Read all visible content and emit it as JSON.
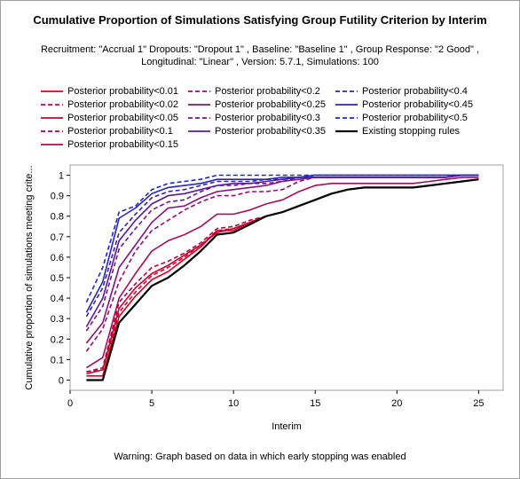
{
  "title": "Cumulative Proportion of Simulations Satisfying Group Futility Criterion by Interim",
  "subtitle_line1": "Recruitment: \"Accrual 1\" Dropouts: \"Dropout 1\" , Baseline: \"Baseline 1\" , Group Response: \"2 Good\" ,",
  "subtitle_line2": "Longitudinal: \"Linear\" , Version: 5.7.1, Simulations: 100",
  "warning": "Warning: Graph based on data in which early stopping was enabled",
  "chart_data": {
    "type": "line",
    "xlabel": "Interim",
    "ylabel": "Cumulative proportion of simulations meeting crite...",
    "xlim": [
      0,
      26.5
    ],
    "ylim": [
      -0.05,
      1.05
    ],
    "xticks": [
      0,
      5,
      10,
      15,
      20,
      25
    ],
    "yticks": [
      0,
      0.1,
      0.2,
      0.3,
      0.4,
      0.5,
      0.6,
      0.7,
      0.8,
      0.9,
      1
    ],
    "x": [
      1,
      2,
      3,
      4,
      5,
      6,
      7,
      8,
      9,
      10,
      11,
      12,
      13,
      14,
      15,
      16,
      17,
      18,
      19,
      20,
      21,
      22,
      23,
      24,
      25
    ],
    "legend_position": "top",
    "series": [
      {
        "name": "Posterior probability<0.01",
        "color": "#e0001e",
        "dash": "solid",
        "values": [
          0.02,
          0.02,
          0.31,
          0.41,
          0.49,
          0.53,
          0.59,
          0.65,
          0.73,
          0.73,
          0.77,
          0.8,
          0.82,
          0.85,
          0.88,
          0.91,
          0.93,
          0.94,
          0.94,
          0.94,
          0.94,
          0.95,
          0.96,
          0.97,
          0.98
        ]
      },
      {
        "name": "Posterior probability<0.02",
        "color": "#dc0028",
        "dash": "dashed",
        "values": [
          0.04,
          0.05,
          0.33,
          0.43,
          0.51,
          0.55,
          0.6,
          0.66,
          0.73,
          0.74,
          0.77,
          0.8,
          0.82,
          0.85,
          0.88,
          0.91,
          0.93,
          0.94,
          0.94,
          0.94,
          0.94,
          0.95,
          0.96,
          0.97,
          0.98
        ]
      },
      {
        "name": "Posterior probability<0.05",
        "color": "#cc0032",
        "dash": "solid",
        "values": [
          0.03,
          0.05,
          0.35,
          0.45,
          0.52,
          0.56,
          0.61,
          0.66,
          0.72,
          0.74,
          0.77,
          0.8,
          0.82,
          0.85,
          0.88,
          0.91,
          0.93,
          0.94,
          0.94,
          0.94,
          0.94,
          0.95,
          0.96,
          0.97,
          0.98
        ]
      },
      {
        "name": "Posterior probability<0.1",
        "color": "#b8004a",
        "dash": "dashed",
        "values": [
          0.04,
          0.06,
          0.38,
          0.47,
          0.55,
          0.58,
          0.62,
          0.67,
          0.74,
          0.75,
          0.78,
          0.8,
          0.82,
          0.85,
          0.88,
          0.91,
          0.93,
          0.94,
          0.94,
          0.94,
          0.94,
          0.95,
          0.96,
          0.97,
          0.98
        ]
      },
      {
        "name": "Posterior probability<0.15",
        "color": "#aa0a5a",
        "dash": "solid",
        "values": [
          0.06,
          0.11,
          0.4,
          0.52,
          0.63,
          0.68,
          0.71,
          0.75,
          0.81,
          0.81,
          0.83,
          0.86,
          0.88,
          0.92,
          0.95,
          0.96,
          0.96,
          0.96,
          0.96,
          0.96,
          0.96,
          0.97,
          0.98,
          0.99,
          0.99
        ]
      },
      {
        "name": "Posterior probability<0.2",
        "color": "#9a0a70",
        "dash": "dashed",
        "values": [
          0.14,
          0.25,
          0.48,
          0.63,
          0.73,
          0.78,
          0.83,
          0.87,
          0.9,
          0.9,
          0.92,
          0.92,
          0.93,
          0.97,
          0.99,
          0.99,
          0.99,
          0.99,
          0.99,
          0.99,
          0.99,
          0.99,
          0.99,
          1.0,
          1.0
        ]
      },
      {
        "name": "Posterior probability<0.25",
        "color": "#8a1080",
        "dash": "solid",
        "values": [
          0.18,
          0.28,
          0.55,
          0.66,
          0.77,
          0.84,
          0.85,
          0.89,
          0.92,
          0.93,
          0.94,
          0.95,
          0.97,
          0.98,
          0.99,
          0.99,
          0.99,
          0.99,
          0.99,
          0.99,
          0.99,
          0.99,
          0.99,
          1.0,
          1.0
        ]
      },
      {
        "name": "Posterior probability<0.3",
        "color": "#721490",
        "dash": "dashed",
        "values": [
          0.24,
          0.36,
          0.64,
          0.74,
          0.83,
          0.87,
          0.88,
          0.92,
          0.95,
          0.95,
          0.96,
          0.96,
          0.97,
          0.99,
          0.99,
          0.99,
          0.99,
          0.99,
          0.99,
          0.99,
          0.99,
          0.99,
          0.99,
          1.0,
          1.0
        ]
      },
      {
        "name": "Posterior probability<0.35",
        "color": "#5a18a0",
        "dash": "solid",
        "values": [
          0.26,
          0.4,
          0.68,
          0.78,
          0.86,
          0.9,
          0.91,
          0.93,
          0.95,
          0.96,
          0.96,
          0.97,
          0.98,
          0.99,
          0.99,
          0.99,
          0.99,
          0.99,
          0.99,
          0.99,
          0.99,
          0.99,
          0.99,
          1.0,
          1.0
        ]
      },
      {
        "name": "Posterior probability<0.4",
        "color": "#3a20b4",
        "dash": "dashed",
        "values": [
          0.31,
          0.45,
          0.72,
          0.81,
          0.89,
          0.92,
          0.93,
          0.95,
          0.97,
          0.97,
          0.97,
          0.98,
          0.98,
          0.99,
          1.0,
          1.0,
          1.0,
          1.0,
          1.0,
          1.0,
          1.0,
          1.0,
          1.0,
          1.0,
          1.0
        ]
      },
      {
        "name": "Posterior probability<0.45",
        "color": "#2a24c4",
        "dash": "solid",
        "values": [
          0.33,
          0.48,
          0.79,
          0.84,
          0.91,
          0.94,
          0.95,
          0.96,
          0.98,
          0.98,
          0.98,
          0.98,
          0.99,
          0.99,
          1.0,
          1.0,
          1.0,
          1.0,
          1.0,
          1.0,
          1.0,
          1.0,
          1.0,
          1.0,
          1.0
        ]
      },
      {
        "name": "Posterior probability<0.5",
        "color": "#1a28d2",
        "dash": "dashed",
        "values": [
          0.38,
          0.55,
          0.82,
          0.85,
          0.93,
          0.96,
          0.97,
          0.98,
          1.0,
          1.0,
          1.0,
          1.0,
          1.0,
          1.0,
          1.0,
          1.0,
          1.0,
          1.0,
          1.0,
          1.0,
          1.0,
          1.0,
          1.0,
          1.0,
          1.0
        ]
      },
      {
        "name": "Existing stopping rules",
        "color": "#000000",
        "dash": "solid",
        "bold": true,
        "values": [
          0.0,
          0.0,
          0.28,
          0.37,
          0.46,
          0.5,
          0.56,
          0.63,
          0.71,
          0.72,
          0.76,
          0.8,
          0.82,
          0.85,
          0.88,
          0.91,
          0.93,
          0.94,
          0.94,
          0.94,
          0.94,
          0.95,
          0.96,
          0.97,
          0.98
        ]
      }
    ]
  }
}
